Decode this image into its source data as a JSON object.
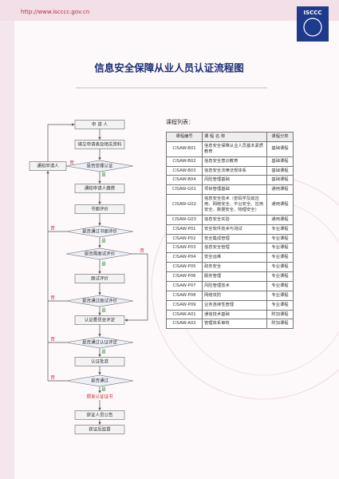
{
  "header": {
    "url": "http://www.iscccc.gov.cn",
    "logo": "ISCCC"
  },
  "title": "信息安全保障从业人员认证流程图",
  "flow": {
    "nodes": [
      "申 请 人",
      "填交申请表及相关资料",
      "是否受理认证",
      "通知申请人缴费",
      "书面评价",
      "是否通过书面评价",
      "是否需面试评价",
      "面试评价",
      "是否通过面试评价",
      "认证委员会评定",
      "是否通过认证评定",
      "认证批准",
      "是否通过",
      "颁发认证证书",
      "获证人员公告",
      "获证后监督",
      "通知申请人"
    ],
    "edge_labels": [
      "否",
      "是",
      "否",
      "是",
      "否",
      "是",
      "否",
      "是",
      "否",
      "是",
      "否",
      "是"
    ]
  },
  "table": {
    "caption": "课程列表：",
    "columns": [
      "课程编号",
      "课 程 名 称",
      "课程分类"
    ],
    "rows": [
      [
        "CISAW-B01",
        "信息安全保障从业人员基本素质教育",
        "基础课程"
      ],
      [
        "CISAW-B02",
        "信息安全意识教育",
        "基础课程"
      ],
      [
        "CISAW-B03",
        "信息安全法律法规体系",
        "基础课程"
      ],
      [
        "CISAW-B04",
        "风险管理基础",
        "基础课程"
      ],
      [
        "CISAW-G01",
        "项目管理基础",
        "通用课程"
      ],
      [
        "CISAW-G02",
        "信息安全技术（密码学及其应用、网络安全、平台安全、应用安全、数据安全、物理安全）",
        "通用课程"
      ],
      [
        "CISAW-G03",
        "信息安全实验",
        "通用课程"
      ],
      [
        "CISAW-P01",
        "安全软件技术与测试",
        "专业课程"
      ],
      [
        "CISAW-P02",
        "安全集成管理",
        "专业课程"
      ],
      [
        "CISAW-P03",
        "信息安全管理",
        "专业课程"
      ],
      [
        "CISAW-P04",
        "安全运维",
        "专业课程"
      ],
      [
        "CISAW-P05",
        "政务安全",
        "专业课程"
      ],
      [
        "CISAW-P06",
        "服务管理",
        "专业课程"
      ],
      [
        "CISAW-P07",
        "风险管理技术",
        "专业课程"
      ],
      [
        "CISAW-P08",
        "网络攻防",
        "专业课程"
      ],
      [
        "CISAW-P09",
        "业务连续性管理",
        "专业课程"
      ],
      [
        "CISAW-A01",
        "通信技术基础",
        "附加课程"
      ],
      [
        "CISAW-A02",
        "管理体系审核",
        "附加课程"
      ]
    ]
  }
}
